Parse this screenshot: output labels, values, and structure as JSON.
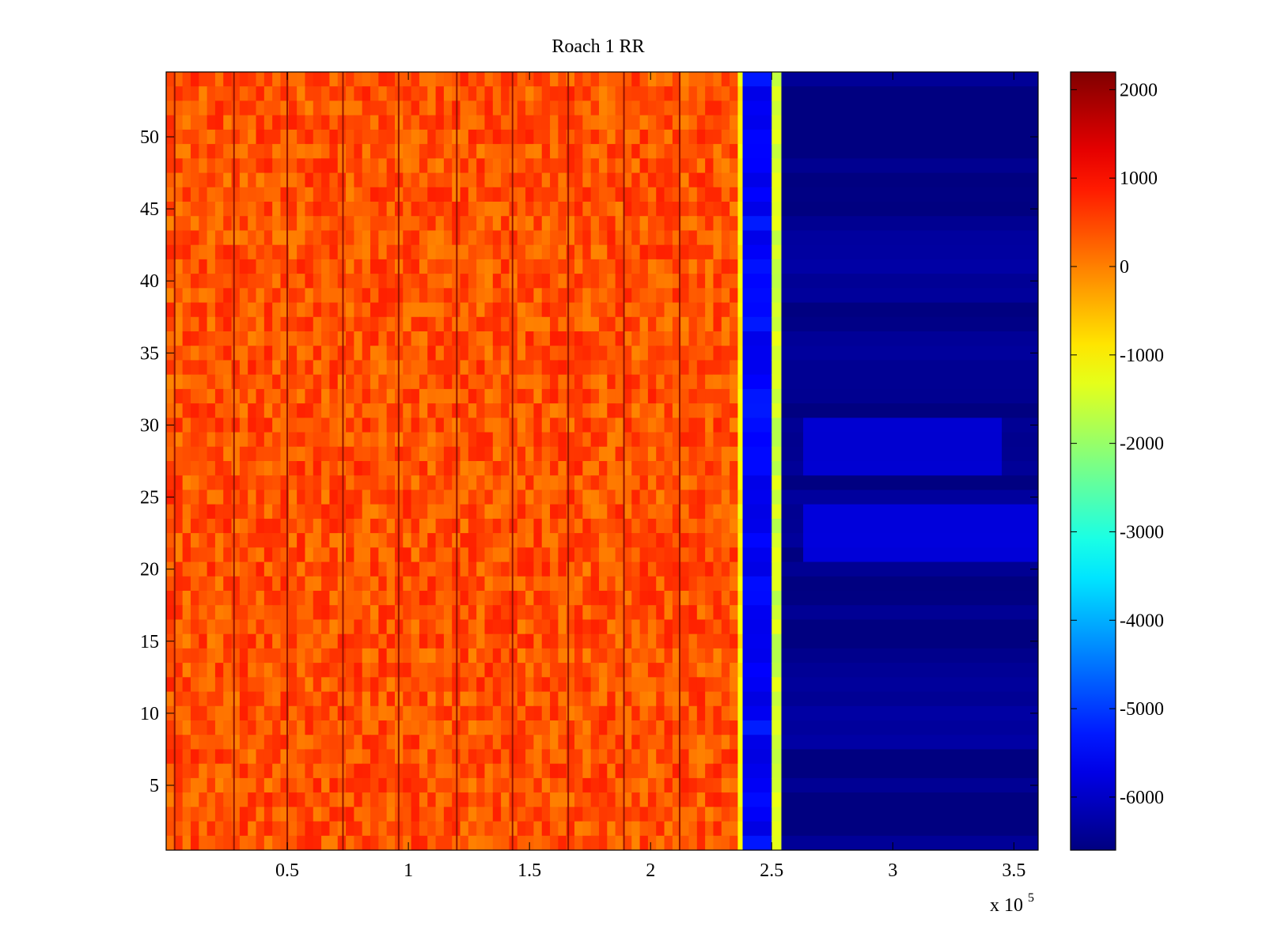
{
  "chart_data": {
    "type": "heatmap",
    "title": "Roach 1 RR",
    "xlabel": "",
    "ylabel": "",
    "x_multiplier_label": "x 10",
    "x_multiplier_exponent": "5",
    "xlim": [
      0,
      360000
    ],
    "ylim": [
      0.5,
      54.5
    ],
    "x_ticks": [
      {
        "value": 50000,
        "label": "0.5"
      },
      {
        "value": 100000,
        "label": "1"
      },
      {
        "value": 150000,
        "label": "1.5"
      },
      {
        "value": 200000,
        "label": "2"
      },
      {
        "value": 250000,
        "label": "2.5"
      },
      {
        "value": 300000,
        "label": "3"
      },
      {
        "value": 350000,
        "label": "3.5"
      }
    ],
    "y_ticks": [
      {
        "value": 5,
        "label": "5"
      },
      {
        "value": 10,
        "label": "10"
      },
      {
        "value": 15,
        "label": "15"
      },
      {
        "value": 20,
        "label": "20"
      },
      {
        "value": 25,
        "label": "25"
      },
      {
        "value": 30,
        "label": "30"
      },
      {
        "value": 35,
        "label": "35"
      },
      {
        "value": 40,
        "label": "40"
      },
      {
        "value": 45,
        "label": "45"
      },
      {
        "value": 50,
        "label": "50"
      }
    ],
    "colormap": "jet",
    "clim": [
      -6600,
      2200
    ],
    "colorbar_ticks": [
      {
        "value": 2000,
        "label": "2000"
      },
      {
        "value": 1000,
        "label": "1000"
      },
      {
        "value": 0,
        "label": "0"
      },
      {
        "value": -1000,
        "label": "-1000"
      },
      {
        "value": -2000,
        "label": "-2000"
      },
      {
        "value": -3000,
        "label": "-3000"
      },
      {
        "value": -4000,
        "label": "-4000"
      },
      {
        "value": -5000,
        "label": "-5000"
      },
      {
        "value": -6000,
        "label": "-6000"
      }
    ],
    "rows": 54,
    "regions": [
      {
        "x_start": 0,
        "x_end": 236000,
        "approx_value": 400,
        "description": "high band"
      },
      {
        "x_start": 236000,
        "x_end": 238000,
        "approx_value": -1000
      },
      {
        "x_start": 238000,
        "x_end": 250000,
        "approx_value": -5500
      },
      {
        "x_start": 250000,
        "x_end": 254000,
        "approx_value": -1500
      },
      {
        "x_start": 254000,
        "x_end": 360000,
        "approx_value": -6500
      }
    ],
    "dark_vertical_lines_x": [
      3500,
      28000,
      50000,
      73000,
      96000,
      120000,
      143000,
      166000,
      189000,
      212000
    ],
    "light_bands": [
      {
        "y_start": 20.5,
        "y_end": 24.5,
        "x_start": 263000,
        "x_end": 360000,
        "approx_value": -5700
      },
      {
        "y_start": 26.5,
        "y_end": 30.5,
        "x_start": 263000,
        "x_end": 345000,
        "approx_value": -5800
      }
    ]
  }
}
